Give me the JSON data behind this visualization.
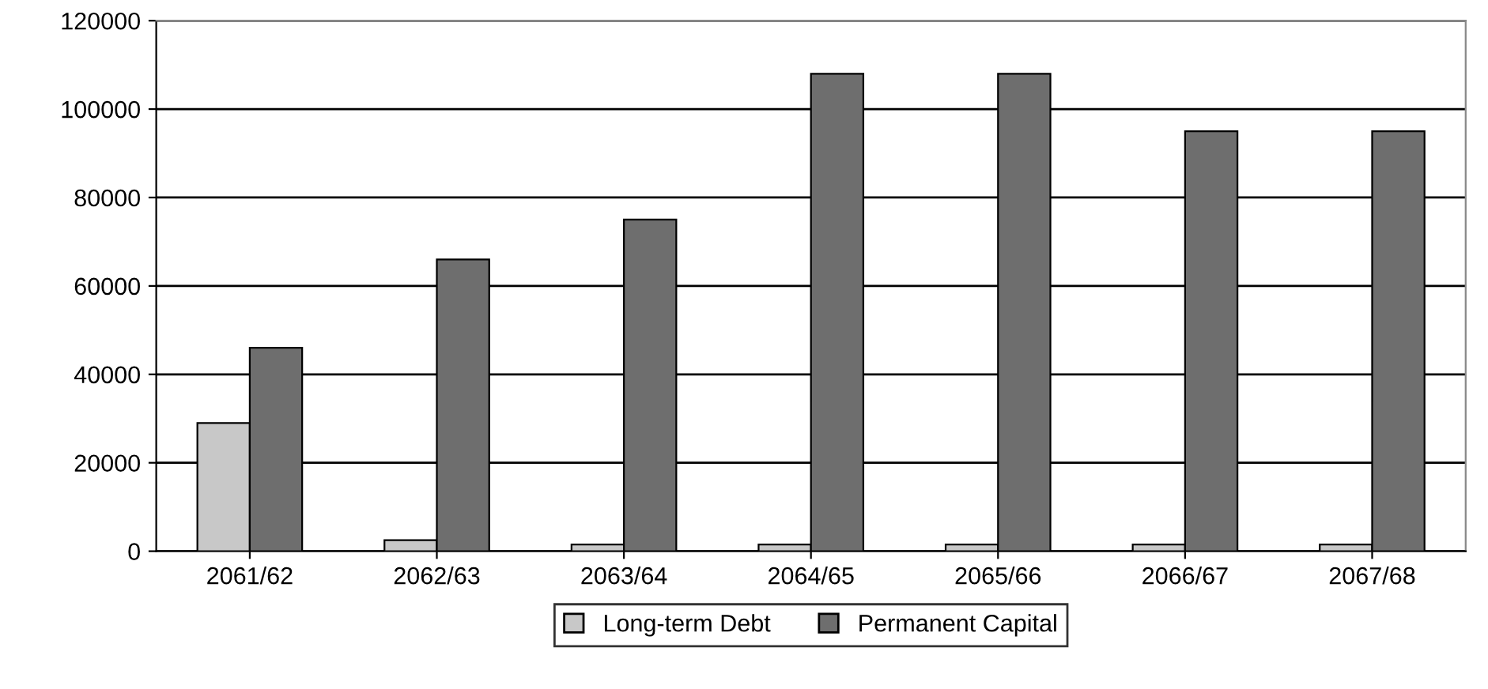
{
  "chart_data": {
    "type": "bar",
    "categories": [
      "2061/62",
      "2062/63",
      "2063/64",
      "2064/65",
      "2065/66",
      "2066/67",
      "2067/68"
    ],
    "series": [
      {
        "name": "Long-term Debt",
        "color": "#c8c8c8",
        "values": [
          29000,
          2500,
          1500,
          1500,
          1500,
          1500,
          1500
        ]
      },
      {
        "name": "Permanent Capital",
        "color": "#6e6e6e",
        "values": [
          46000,
          66000,
          75000,
          108000,
          108000,
          95000,
          95000
        ]
      }
    ],
    "ylim": [
      0,
      120000
    ],
    "yticks": [
      0,
      20000,
      40000,
      60000,
      80000,
      100000,
      120000
    ],
    "grid": "y",
    "legend": "bottom"
  }
}
